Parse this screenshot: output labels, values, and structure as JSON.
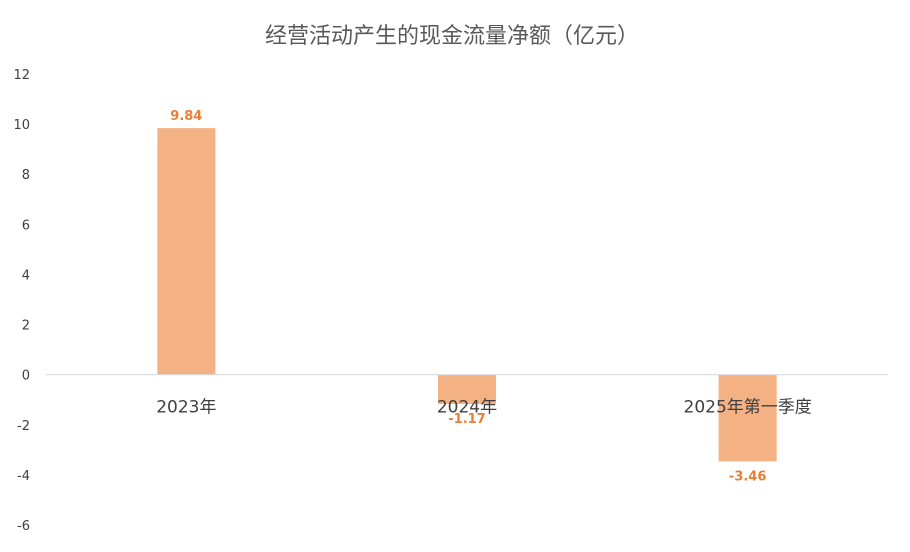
{
  "chart_data": {
    "type": "bar",
    "title": "经营活动产生的现金流量净额（亿元）",
    "categories": [
      "2023年",
      "2024年",
      "2025年第一季度"
    ],
    "series": [
      {
        "values": [
          9.84,
          -1.17,
          -3.46
        ],
        "data_labels": [
          "9.84",
          "-1.17",
          "-3.46"
        ]
      }
    ],
    "xlabel": "",
    "ylabel": "",
    "ylim": [
      -6,
      12
    ],
    "yticks": [
      12,
      10,
      8,
      6,
      4,
      2,
      0,
      -2,
      -4,
      -6
    ],
    "grid": false,
    "legend": "none",
    "colors": {
      "bar": "#F4B183",
      "data_label": "#ED7D31",
      "axis_line": "#D9D9D9"
    }
  }
}
